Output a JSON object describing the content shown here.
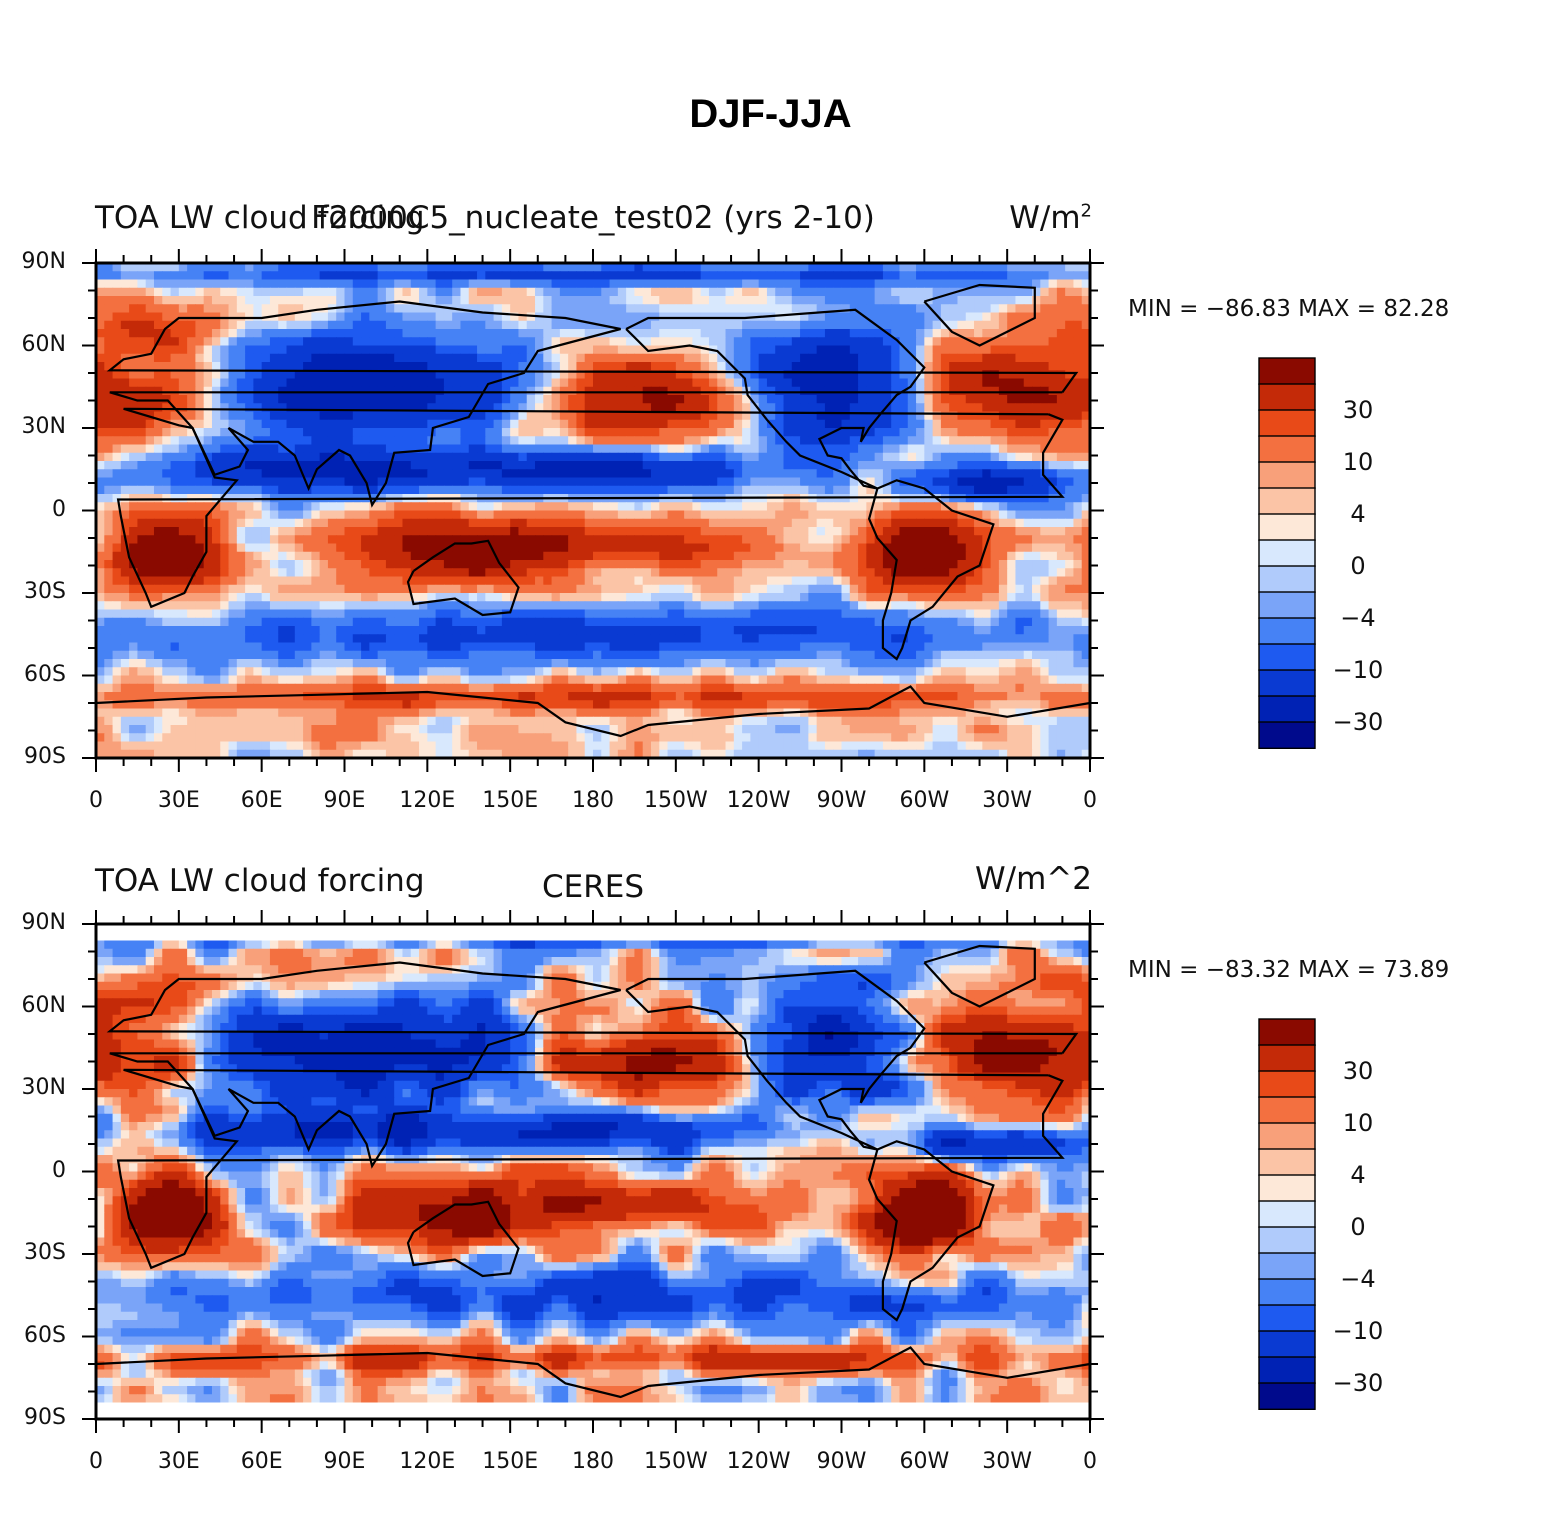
{
  "figure_title": "DJF-JJA",
  "colors": {
    "scale": [
      "#000a8c",
      "#0022b4",
      "#0a3ad2",
      "#1e5af0",
      "#4682f5",
      "#7aa4f8",
      "#b0cbfb",
      "#d8e8fd",
      "#fde8d8",
      "#fbc4a6",
      "#f8a07a",
      "#f37040",
      "#e84a18",
      "#c42a08",
      "#8a0a00"
    ],
    "land_outline": "#000000"
  },
  "panels": [
    {
      "left_title": "TOA LW cloud forcing",
      "center_title": "F2000C5_nucleate_test02 (yrs 2-10)",
      "right_title": "W/m",
      "right_title_sup": "2",
      "stats": "MIN = −86.83 MAX =  82.28",
      "colorbar_labels": [
        "30",
        "10",
        "4",
        "0",
        "−4",
        "−10",
        "−30"
      ],
      "x_tick_labels": [
        "0",
        "30E",
        "60E",
        "90E",
        "120E",
        "150E",
        "180",
        "150W",
        "120W",
        "90W",
        "60W",
        "30W",
        "0"
      ],
      "y_tick_labels": [
        "90N",
        "60N",
        "30N",
        "0",
        "30S",
        "60S",
        "90S"
      ]
    },
    {
      "left_title": "TOA LW cloud forcing",
      "center_title": "CERES",
      "right_title": "W/m^2",
      "right_title_sup": "",
      "stats": "MIN = −83.32 MAX =  73.89",
      "colorbar_labels": [
        "30",
        "10",
        "4",
        "0",
        "−4",
        "−10",
        "−30"
      ],
      "x_tick_labels": [
        "0",
        "30E",
        "60E",
        "90E",
        "120E",
        "150E",
        "180",
        "150W",
        "120W",
        "90W",
        "60W",
        "30W",
        "0"
      ],
      "y_tick_labels": [
        "90N",
        "60N",
        "30N",
        "0",
        "30S",
        "60S",
        "90S"
      ]
    }
  ]
}
